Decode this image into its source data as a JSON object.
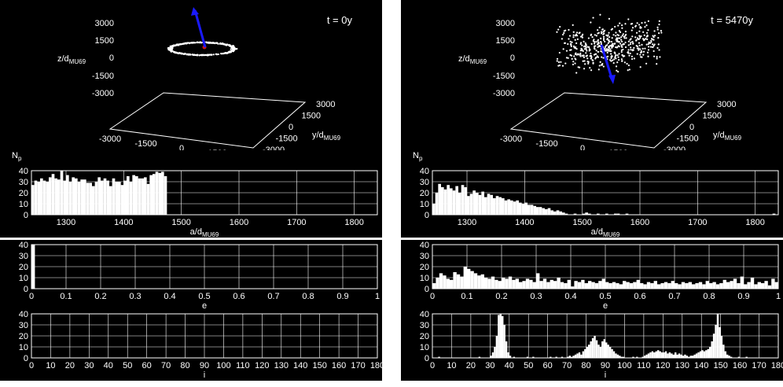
{
  "chart_data": [
    {
      "type": "scatter",
      "panel": "left-3d",
      "time_label": "t = 0y",
      "xlabel": "x/d",
      "xlabel_sub": "MU69",
      "ylabel": "y/d",
      "ylabel_sub": "MU69",
      "zlabel": "z/d",
      "zlabel_sub": "MU69",
      "x_ticks": [
        "-3000",
        "-1500",
        "0",
        "1500",
        "3000"
      ],
      "y_ticks": [
        "3000",
        "1500",
        "0",
        "-1500",
        "-3000"
      ],
      "z_ticks": [
        "3000",
        "1500",
        "0",
        "-1500",
        "-3000"
      ],
      "distribution": "ring",
      "ring_radius": 1350,
      "arrow_direction": "up-left",
      "colors": {
        "points": "#ffffff",
        "arrow": "#1a1aff",
        "center": "#cc1111"
      }
    },
    {
      "type": "scatter",
      "panel": "right-3d",
      "time_label": "t = 5470y",
      "xlabel": "x/d",
      "xlabel_sub": "MU69",
      "ylabel": "y/d",
      "ylabel_sub": "MU69",
      "zlabel": "z/d",
      "zlabel_sub": "MU69",
      "x_ticks": [
        "-3000",
        "-1500",
        "0",
        "1500",
        "3000"
      ],
      "y_ticks": [
        "3000",
        "1500",
        "0",
        "-1500",
        "-3000"
      ],
      "z_ticks": [
        "3000",
        "1500",
        "0",
        "-1500",
        "-3000"
      ],
      "distribution": "cloud",
      "arrow_direction": "down-right",
      "colors": {
        "points": "#ffffff",
        "arrow": "#1a1aff"
      }
    },
    {
      "type": "bar",
      "panel": "left-a",
      "ylabel": "N",
      "ylabel_sub": "p",
      "xlabel": "a/d",
      "xlabel_sub": "MU69",
      "xlim": [
        1240,
        1840
      ],
      "ylim": [
        0,
        40
      ],
      "xticks": [
        1300,
        1400,
        1500,
        1600,
        1700,
        1800
      ],
      "yticks": [
        0,
        10,
        20,
        30,
        40
      ],
      "bin_start": 1240,
      "bin_width": 5,
      "values": [
        27,
        31,
        30,
        33,
        31,
        30,
        34,
        37,
        33,
        32,
        40,
        31,
        36,
        30,
        34,
        33,
        30,
        32,
        32,
        29,
        29,
        26,
        30,
        34,
        31,
        33,
        31,
        26,
        33,
        30,
        30,
        27,
        31,
        35,
        30,
        36,
        35,
        33,
        33,
        34,
        28,
        36,
        37,
        39,
        38,
        39,
        35
      ]
    },
    {
      "type": "bar",
      "panel": "left-e",
      "xlabel": "e",
      "xlim": [
        0,
        1
      ],
      "ylim": [
        0,
        40
      ],
      "xticks": [
        0,
        0.1,
        0.2,
        0.3,
        0.4,
        0.5,
        0.6,
        0.7,
        0.8,
        0.9,
        1
      ],
      "yticks": [
        0,
        10,
        20,
        30,
        40
      ],
      "bin_start": 0,
      "bin_width": 0.01,
      "values": [
        40
      ]
    },
    {
      "type": "bar",
      "panel": "left-i",
      "xlabel": "i",
      "xlim": [
        0,
        180
      ],
      "ylim": [
        0,
        40
      ],
      "xticks": [
        0,
        10,
        20,
        30,
        40,
        50,
        60,
        70,
        80,
        90,
        100,
        110,
        120,
        130,
        140,
        150,
        160,
        170,
        180
      ],
      "yticks": [
        0,
        10,
        20,
        30,
        40
      ],
      "bin_start": 0,
      "bin_width": 1,
      "values": []
    },
    {
      "type": "bar",
      "panel": "right-a",
      "ylabel": "N",
      "ylabel_sub": "p",
      "xlabel": "a/d",
      "xlabel_sub": "MU69",
      "xlim": [
        1240,
        1840
      ],
      "ylim": [
        0,
        40
      ],
      "xticks": [
        1300,
        1400,
        1500,
        1600,
        1700,
        1800
      ],
      "yticks": [
        0,
        10,
        20,
        30,
        40
      ],
      "bin_start": 1240,
      "bin_width": 5,
      "values": [
        10,
        20,
        28,
        25,
        23,
        27,
        24,
        22,
        26,
        20,
        27,
        25,
        17,
        19,
        22,
        20,
        18,
        21,
        16,
        19,
        18,
        15,
        17,
        16,
        15,
        13,
        14,
        13,
        12,
        13,
        11,
        10,
        11,
        9,
        9,
        8,
        7,
        7,
        6,
        5,
        6,
        4,
        3,
        4,
        3,
        2,
        1,
        0,
        0,
        1,
        0,
        0,
        1,
        2,
        1,
        0,
        0,
        1,
        0,
        0,
        1,
        0,
        0,
        1,
        1,
        0,
        0,
        1,
        0,
        0,
        0,
        0,
        0,
        0,
        0,
        0,
        0,
        0,
        0,
        0,
        0,
        0,
        0,
        0,
        0,
        0,
        0,
        0,
        0,
        0,
        0,
        0,
        0,
        0,
        0,
        0,
        0,
        0,
        0,
        0,
        0,
        0,
        0,
        0,
        0,
        0,
        0,
        0,
        0,
        0,
        0,
        0,
        0,
        0,
        0,
        0,
        0,
        0,
        1,
        0
      ]
    },
    {
      "type": "bar",
      "panel": "right-e",
      "xlabel": "e",
      "xlim": [
        0,
        1
      ],
      "ylim": [
        0,
        40
      ],
      "xticks": [
        0,
        0.1,
        0.2,
        0.3,
        0.4,
        0.5,
        0.6,
        0.7,
        0.8,
        0.9,
        1
      ],
      "yticks": [
        0,
        10,
        20,
        30,
        40
      ],
      "bin_start": 0,
      "bin_width": 0.01,
      "values": [
        5,
        10,
        14,
        12,
        9,
        8,
        15,
        13,
        11,
        20,
        18,
        16,
        14,
        12,
        13,
        10,
        9,
        11,
        8,
        7,
        10,
        9,
        11,
        8,
        9,
        6,
        7,
        9,
        8,
        6,
        14,
        7,
        9,
        6,
        8,
        7,
        10,
        6,
        5,
        8,
        2,
        7,
        6,
        8,
        5,
        7,
        6,
        5,
        7,
        9,
        6,
        5,
        6,
        5,
        4,
        7,
        6,
        5,
        6,
        8,
        5,
        4,
        6,
        5,
        7,
        4,
        5,
        6,
        5,
        7,
        5,
        4,
        6,
        5,
        6,
        4,
        5,
        6,
        4,
        7,
        5,
        6,
        4,
        5,
        8,
        6,
        7,
        9,
        5,
        11,
        4,
        6,
        10,
        4,
        6,
        5,
        7,
        3,
        9,
        6
      ]
    },
    {
      "type": "bar",
      "panel": "right-i",
      "xlabel": "i",
      "xlim": [
        0,
        180
      ],
      "ylim": [
        0,
        40
      ],
      "xticks": [
        0,
        10,
        20,
        30,
        40,
        50,
        60,
        70,
        80,
        90,
        100,
        110,
        120,
        130,
        140,
        150,
        160,
        170,
        180
      ],
      "yticks": [
        0,
        10,
        20,
        30,
        40
      ],
      "bin_start": 0,
      "bin_width": 1,
      "values": [
        0,
        0,
        0,
        1,
        0,
        0,
        0,
        0,
        0,
        0,
        0,
        0,
        0,
        0,
        0,
        0,
        0,
        0,
        0,
        0,
        0,
        0,
        0,
        0,
        1,
        0,
        0,
        0,
        0,
        0,
        2,
        5,
        10,
        20,
        39,
        40,
        38,
        30,
        15,
        5,
        2,
        0,
        1,
        0,
        0,
        0,
        0,
        0,
        0,
        1,
        0,
        0,
        1,
        0,
        0,
        0,
        0,
        0,
        0,
        0,
        0,
        1,
        0,
        0,
        1,
        0,
        0,
        1,
        0,
        0,
        1,
        2,
        1,
        2,
        3,
        4,
        5,
        3,
        6,
        8,
        10,
        12,
        15,
        18,
        20,
        16,
        12,
        10,
        15,
        17,
        14,
        12,
        10,
        8,
        6,
        4,
        3,
        2,
        1,
        1,
        0,
        0,
        0,
        0,
        1,
        0,
        1,
        0,
        0,
        1,
        2,
        3,
        4,
        5,
        6,
        5,
        6,
        7,
        6,
        5,
        5,
        6,
        4,
        5,
        4,
        3,
        5,
        3,
        4,
        3,
        2,
        3,
        2,
        1,
        2,
        2,
        3,
        4,
        5,
        6,
        7,
        6,
        7,
        8,
        10,
        15,
        22,
        30,
        40,
        28,
        20,
        12,
        6,
        3,
        2,
        1,
        0,
        0,
        0,
        1,
        0,
        0,
        0,
        1,
        0,
        0,
        0,
        0,
        0,
        0
      ]
    }
  ]
}
